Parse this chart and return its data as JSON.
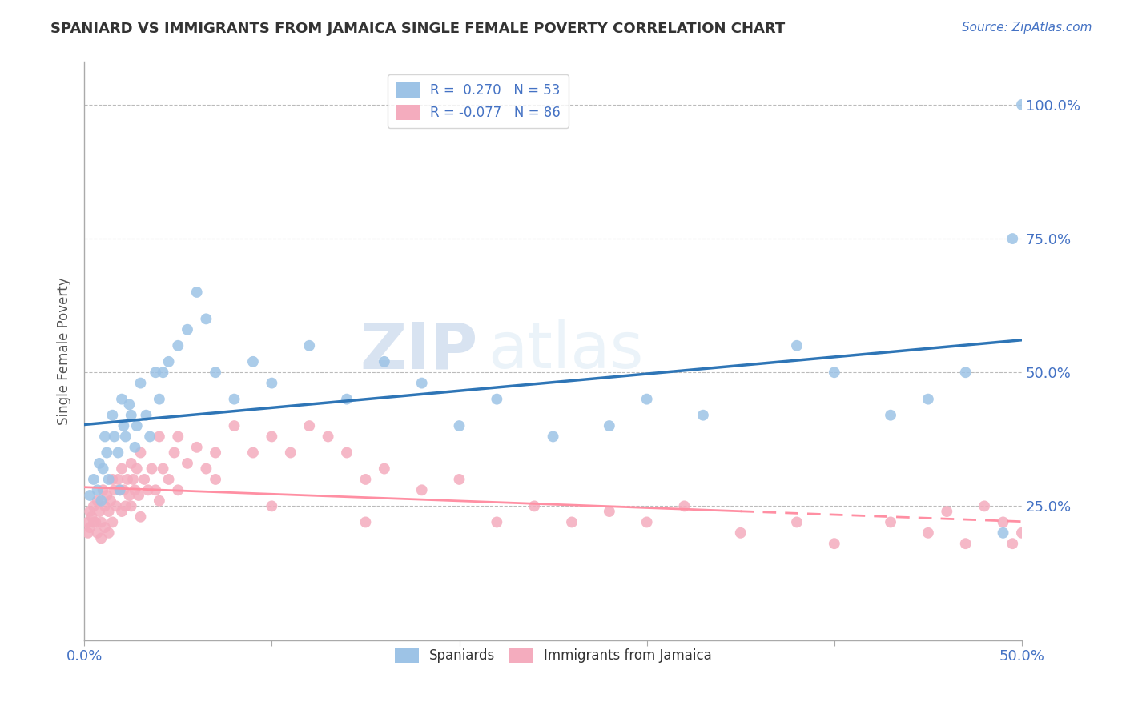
{
  "title": "SPANIARD VS IMMIGRANTS FROM JAMAICA SINGLE FEMALE POVERTY CORRELATION CHART",
  "source_text": "Source: ZipAtlas.com",
  "ylabel": "Single Female Poverty",
  "xlim": [
    0.0,
    0.5
  ],
  "ylim": [
    0.0,
    1.08
  ],
  "ytick_positions": [
    0.25,
    0.5,
    0.75,
    1.0
  ],
  "ytick_labels": [
    "25.0%",
    "50.0%",
    "75.0%",
    "100.0%"
  ],
  "blue_R": 0.27,
  "blue_N": 53,
  "pink_R": -0.077,
  "pink_N": 86,
  "blue_color": "#9DC3E6",
  "pink_color": "#F4ACBE",
  "blue_line_color": "#2E75B6",
  "pink_line_color": "#FF8FA3",
  "watermark_zip": "ZIP",
  "watermark_atlas": "atlas",
  "legend_label_blue": "Spaniards",
  "legend_label_pink": "Immigrants from Jamaica",
  "blue_scatter_x": [
    0.003,
    0.005,
    0.007,
    0.008,
    0.009,
    0.01,
    0.011,
    0.012,
    0.013,
    0.015,
    0.016,
    0.018,
    0.019,
    0.02,
    0.021,
    0.022,
    0.024,
    0.025,
    0.027,
    0.028,
    0.03,
    0.033,
    0.035,
    0.038,
    0.04,
    0.042,
    0.045,
    0.05,
    0.055,
    0.06,
    0.065,
    0.07,
    0.08,
    0.09,
    0.1,
    0.12,
    0.14,
    0.16,
    0.18,
    0.2,
    0.22,
    0.25,
    0.28,
    0.3,
    0.33,
    0.38,
    0.4,
    0.43,
    0.45,
    0.47,
    0.49,
    0.495,
    0.5
  ],
  "blue_scatter_y": [
    0.27,
    0.3,
    0.28,
    0.33,
    0.26,
    0.32,
    0.38,
    0.35,
    0.3,
    0.42,
    0.38,
    0.35,
    0.28,
    0.45,
    0.4,
    0.38,
    0.44,
    0.42,
    0.36,
    0.4,
    0.48,
    0.42,
    0.38,
    0.5,
    0.45,
    0.5,
    0.52,
    0.55,
    0.58,
    0.65,
    0.6,
    0.5,
    0.45,
    0.52,
    0.48,
    0.55,
    0.45,
    0.52,
    0.48,
    0.4,
    0.45,
    0.38,
    0.4,
    0.45,
    0.42,
    0.55,
    0.5,
    0.42,
    0.45,
    0.5,
    0.2,
    0.75,
    1.0
  ],
  "pink_scatter_x": [
    0.002,
    0.003,
    0.004,
    0.005,
    0.006,
    0.007,
    0.008,
    0.009,
    0.01,
    0.011,
    0.012,
    0.013,
    0.014,
    0.015,
    0.016,
    0.017,
    0.018,
    0.019,
    0.02,
    0.021,
    0.022,
    0.023,
    0.024,
    0.025,
    0.026,
    0.027,
    0.028,
    0.029,
    0.03,
    0.032,
    0.034,
    0.036,
    0.038,
    0.04,
    0.042,
    0.045,
    0.048,
    0.05,
    0.055,
    0.06,
    0.065,
    0.07,
    0.08,
    0.09,
    0.1,
    0.11,
    0.12,
    0.13,
    0.14,
    0.15,
    0.16,
    0.18,
    0.2,
    0.22,
    0.24,
    0.26,
    0.28,
    0.3,
    0.32,
    0.35,
    0.38,
    0.4,
    0.43,
    0.45,
    0.46,
    0.47,
    0.48,
    0.49,
    0.495,
    0.5,
    0.002,
    0.003,
    0.005,
    0.007,
    0.009,
    0.011,
    0.013,
    0.015,
    0.02,
    0.025,
    0.03,
    0.04,
    0.05,
    0.07,
    0.1,
    0.15
  ],
  "pink_scatter_y": [
    0.22,
    0.24,
    0.23,
    0.25,
    0.22,
    0.26,
    0.24,
    0.22,
    0.28,
    0.25,
    0.27,
    0.24,
    0.26,
    0.3,
    0.28,
    0.25,
    0.3,
    0.28,
    0.32,
    0.28,
    0.25,
    0.3,
    0.27,
    0.33,
    0.3,
    0.28,
    0.32,
    0.27,
    0.35,
    0.3,
    0.28,
    0.32,
    0.28,
    0.38,
    0.32,
    0.3,
    0.35,
    0.38,
    0.33,
    0.36,
    0.32,
    0.35,
    0.4,
    0.35,
    0.38,
    0.35,
    0.4,
    0.38,
    0.35,
    0.3,
    0.32,
    0.28,
    0.3,
    0.22,
    0.25,
    0.22,
    0.24,
    0.22,
    0.25,
    0.2,
    0.22,
    0.18,
    0.22,
    0.2,
    0.24,
    0.18,
    0.25,
    0.22,
    0.18,
    0.2,
    0.2,
    0.21,
    0.22,
    0.2,
    0.19,
    0.21,
    0.2,
    0.22,
    0.24,
    0.25,
    0.23,
    0.26,
    0.28,
    0.3,
    0.25,
    0.22
  ]
}
